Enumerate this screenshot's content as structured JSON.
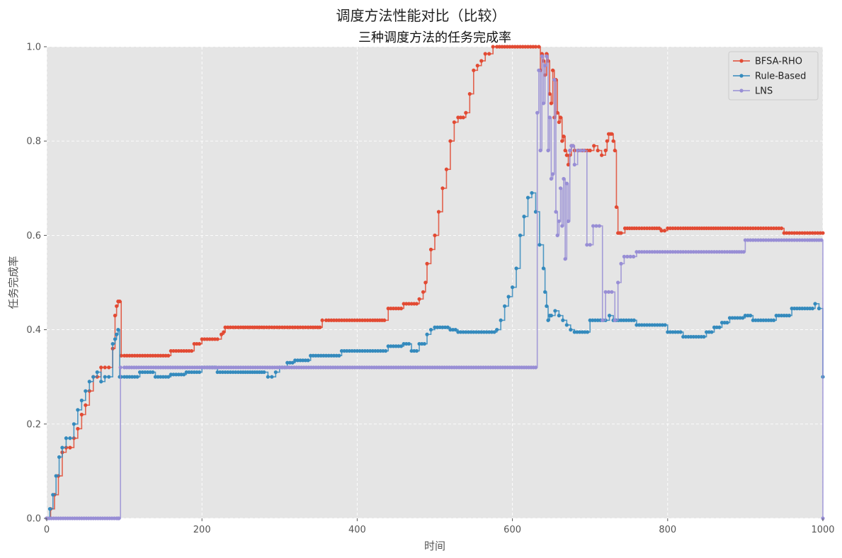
{
  "figure": {
    "suptitle": "调度方法性能对比（比较）"
  },
  "colors": {
    "plot_bg": "#E5E5E5",
    "grid": "#FFFFFF",
    "text": "#555555"
  },
  "chart_data": {
    "type": "line",
    "title": "三种调度方法的任务完成率",
    "xlabel": "时间",
    "ylabel": "任务完成率",
    "xlim": [
      0,
      1000
    ],
    "ylim": [
      0,
      1
    ],
    "xticks": [
      0,
      200,
      400,
      600,
      800,
      1000
    ],
    "yticks": [
      0.0,
      0.2,
      0.4,
      0.6,
      0.8,
      1.0
    ],
    "ytick_labels": [
      "0.0",
      "0.2",
      "0.4",
      "0.6",
      "0.8",
      "1.0"
    ],
    "grid": true,
    "legend_position": "top-right",
    "marker": "circle",
    "series": [
      {
        "name": "BFSA-RHO",
        "color": "#E24A33",
        "x": [
          0,
          5,
          10,
          15,
          20,
          25,
          30,
          35,
          40,
          45,
          50,
          55,
          60,
          65,
          70,
          75,
          80,
          85,
          88,
          90,
          92,
          94,
          96,
          100,
          120,
          140,
          160,
          170,
          180,
          190,
          200,
          210,
          220,
          225,
          228,
          230,
          250,
          280,
          300,
          320,
          340,
          355,
          360,
          380,
          400,
          420,
          435,
          440,
          460,
          480,
          485,
          488,
          490,
          495,
          500,
          505,
          510,
          515,
          520,
          525,
          530,
          540,
          545,
          550,
          555,
          560,
          565,
          570,
          575,
          580,
          600,
          620,
          630,
          634,
          636,
          638,
          640,
          642,
          644,
          646,
          648,
          650,
          652,
          654,
          656,
          658,
          660,
          662,
          664,
          666,
          668,
          670,
          672,
          674,
          676,
          678,
          680,
          685,
          690,
          700,
          705,
          710,
          715,
          720,
          722,
          724,
          726,
          728,
          730,
          732,
          734,
          736,
          738,
          740,
          745,
          760,
          780,
          792,
          800,
          820,
          850,
          880,
          900,
          920,
          940,
          950,
          960,
          980,
          1000
        ],
        "y": [
          0,
          0.02,
          0.05,
          0.09,
          0.14,
          0.15,
          0.15,
          0.17,
          0.19,
          0.22,
          0.24,
          0.27,
          0.3,
          0.3,
          0.32,
          0.32,
          0.32,
          0.36,
          0.43,
          0.45,
          0.46,
          0.46,
          0.345,
          0.345,
          0.345,
          0.345,
          0.355,
          0.355,
          0.355,
          0.37,
          0.38,
          0.38,
          0.38,
          0.39,
          0.395,
          0.405,
          0.405,
          0.405,
          0.405,
          0.405,
          0.405,
          0.42,
          0.42,
          0.42,
          0.42,
          0.42,
          0.42,
          0.445,
          0.455,
          0.465,
          0.48,
          0.5,
          0.54,
          0.57,
          0.6,
          0.65,
          0.7,
          0.74,
          0.8,
          0.84,
          0.85,
          0.86,
          0.9,
          0.95,
          0.96,
          0.97,
          0.985,
          0.985,
          1.0,
          1.0,
          1.0,
          1.0,
          1.0,
          1.0,
          0.95,
          0.985,
          0.97,
          0.94,
          0.985,
          0.97,
          0.9,
          0.88,
          0.95,
          0.85,
          0.93,
          0.86,
          0.84,
          0.85,
          0.8,
          0.81,
          0.78,
          0.77,
          0.75,
          0.77,
          0.79,
          0.79,
          0.78,
          0.78,
          0.78,
          0.78,
          0.79,
          0.78,
          0.77,
          0.78,
          0.8,
          0.815,
          0.815,
          0.815,
          0.8,
          0.78,
          0.66,
          0.605,
          0.605,
          0.605,
          0.615,
          0.615,
          0.615,
          0.61,
          0.615,
          0.615,
          0.615,
          0.615,
          0.615,
          0.615,
          0.615,
          0.605,
          0.605,
          0.605,
          0.605
        ]
      },
      {
        "name": "Rule-Based",
        "color": "#348ABD",
        "x": [
          0,
          4,
          8,
          12,
          16,
          20,
          25,
          30,
          35,
          40,
          45,
          50,
          55,
          60,
          65,
          70,
          75,
          80,
          85,
          88,
          90,
          92,
          94,
          96,
          100,
          120,
          140,
          160,
          180,
          200,
          220,
          230,
          250,
          280,
          285,
          290,
          295,
          300,
          310,
          320,
          340,
          360,
          380,
          400,
          420,
          440,
          460,
          470,
          480,
          490,
          495,
          500,
          520,
          530,
          550,
          570,
          580,
          585,
          590,
          595,
          600,
          605,
          610,
          615,
          620,
          625,
          630,
          635,
          640,
          642,
          644,
          646,
          648,
          650,
          655,
          660,
          665,
          670,
          675,
          680,
          690,
          700,
          710,
          720,
          725,
          730,
          740,
          760,
          780,
          800,
          820,
          840,
          850,
          860,
          870,
          880,
          900,
          910,
          920,
          940,
          960,
          980,
          990,
          995,
          1000
        ],
        "y": [
          0,
          0.02,
          0.05,
          0.09,
          0.13,
          0.15,
          0.17,
          0.17,
          0.2,
          0.23,
          0.25,
          0.27,
          0.29,
          0.3,
          0.31,
          0.29,
          0.3,
          0.3,
          0.37,
          0.38,
          0.39,
          0.4,
          0.3,
          0.3,
          0.3,
          0.31,
          0.3,
          0.305,
          0.31,
          0.32,
          0.31,
          0.31,
          0.31,
          0.31,
          0.3,
          0.3,
          0.31,
          0.32,
          0.33,
          0.335,
          0.345,
          0.345,
          0.355,
          0.355,
          0.355,
          0.365,
          0.37,
          0.355,
          0.37,
          0.39,
          0.4,
          0.405,
          0.4,
          0.395,
          0.395,
          0.395,
          0.4,
          0.42,
          0.45,
          0.47,
          0.49,
          0.53,
          0.6,
          0.64,
          0.68,
          0.69,
          0.65,
          0.58,
          0.53,
          0.48,
          0.45,
          0.42,
          0.43,
          0.43,
          0.44,
          0.43,
          0.42,
          0.41,
          0.4,
          0.395,
          0.395,
          0.42,
          0.42,
          0.42,
          0.43,
          0.42,
          0.42,
          0.41,
          0.41,
          0.395,
          0.385,
          0.385,
          0.395,
          0.405,
          0.415,
          0.425,
          0.43,
          0.42,
          0.42,
          0.43,
          0.445,
          0.445,
          0.455,
          0.445,
          0.3
        ]
      },
      {
        "name": "LNS",
        "color": "#988ED5",
        "x": [
          0,
          90,
          92,
          93,
          95,
          100,
          150,
          200,
          250,
          300,
          350,
          400,
          450,
          500,
          550,
          600,
          630,
          632,
          634,
          636,
          638,
          640,
          642,
          644,
          646,
          648,
          650,
          652,
          654,
          656,
          658,
          660,
          662,
          664,
          666,
          668,
          670,
          672,
          674,
          676,
          678,
          680,
          684,
          688,
          692,
          696,
          700,
          704,
          708,
          712,
          716,
          720,
          724,
          728,
          732,
          736,
          740,
          744,
          748,
          752,
          760,
          780,
          800,
          820,
          840,
          860,
          880,
          898,
          900,
          920,
          940,
          960,
          980,
          998,
          1000
        ],
        "y": [
          0,
          0,
          0,
          0,
          0.32,
          0.32,
          0.32,
          0.32,
          0.32,
          0.32,
          0.32,
          0.32,
          0.32,
          0.32,
          0.32,
          0.32,
          0.32,
          0.86,
          0.95,
          0.78,
          0.98,
          0.88,
          0.96,
          0.98,
          0.78,
          0.85,
          0.72,
          0.73,
          0.93,
          0.65,
          0.6,
          0.63,
          0.7,
          0.62,
          0.72,
          0.55,
          0.71,
          0.63,
          0.78,
          0.79,
          0.79,
          0.75,
          0.78,
          0.78,
          0.78,
          0.58,
          0.58,
          0.62,
          0.62,
          0.62,
          0.42,
          0.48,
          0.48,
          0.48,
          0.42,
          0.5,
          0.54,
          0.555,
          0.555,
          0.555,
          0.565,
          0.565,
          0.565,
          0.565,
          0.565,
          0.565,
          0.565,
          0.565,
          0.59,
          0.59,
          0.59,
          0.59,
          0.59,
          0.59,
          0
        ]
      }
    ]
  }
}
